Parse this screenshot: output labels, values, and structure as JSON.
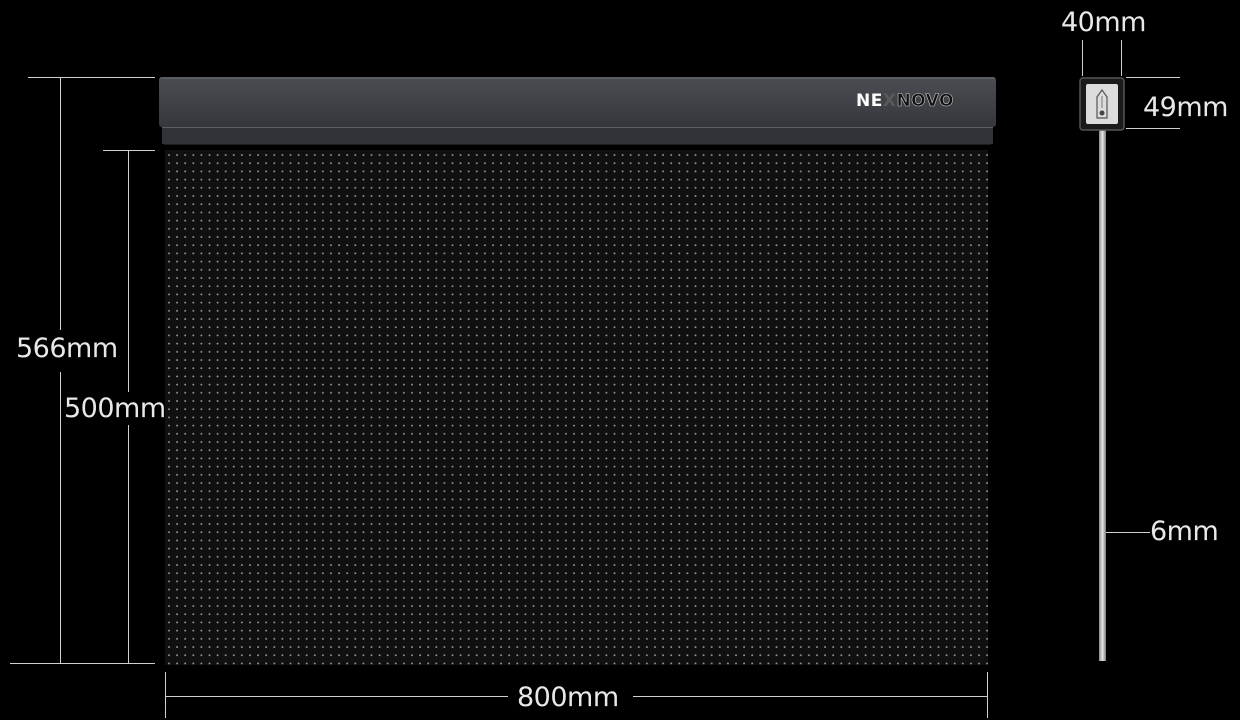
{
  "brand": {
    "prefix": "NE",
    "mark": "X",
    "suffix": "NOVO"
  },
  "dimensions": {
    "total_height": "566mm",
    "panel_height": "500mm",
    "width": "800mm",
    "profile_width": "40mm",
    "profile_height": "49mm",
    "thickness": "6mm"
  },
  "colors": {
    "background": "#000000",
    "header_bar": "#3b3e42",
    "led_dot": "#9a9a9a",
    "dimension_line": "#d0d0d0"
  }
}
